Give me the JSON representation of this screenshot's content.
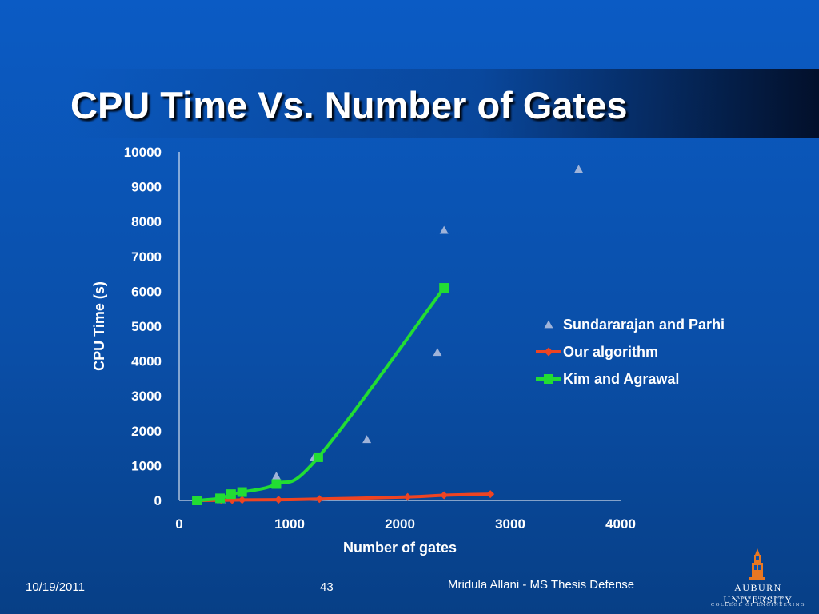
{
  "slide": {
    "title": "CPU Time Vs. Number of Gates",
    "footer_date": "10/19/2011",
    "footer_page": "43",
    "footer_author": "Mridula Allani - MS Thesis Defense"
  },
  "logo": {
    "name": "AUBURN UNIVERSITY",
    "sub1": "SAMUEL GINN",
    "sub2": "COLLEGE OF ENGINEERING"
  },
  "colors": {
    "background": "#0a4fa9",
    "sundararajan": "#9fb3d9",
    "ours": "#ee4422",
    "kim": "#22dd33"
  },
  "chart_data": {
    "type": "scatter",
    "xlabel": "Number of gates",
    "ylabel": "CPU Time (s)",
    "xlim": [
      0,
      4000
    ],
    "ylim": [
      0,
      10000
    ],
    "xticks": [
      0,
      1000,
      2000,
      3000,
      4000
    ],
    "yticks": [
      0,
      1000,
      2000,
      3000,
      4000,
      5000,
      6000,
      7000,
      8000,
      9000,
      10000
    ],
    "grid": false,
    "legend_position": "right",
    "series": [
      {
        "name": "Sundararajan and Parhi",
        "style": "markers",
        "marker": "triangle",
        "color": "#9fb3d9",
        "points": [
          [
            160,
            0
          ],
          [
            380,
            20
          ],
          [
            480,
            80
          ],
          [
            880,
            700
          ],
          [
            1220,
            1230
          ],
          [
            1700,
            1750
          ],
          [
            2340,
            4250
          ],
          [
            2400,
            7750
          ],
          [
            3620,
            9500
          ]
        ]
      },
      {
        "name": "Our algorithm",
        "style": "line+markers",
        "marker": "diamond",
        "color": "#ee4422",
        "points": [
          [
            160,
            0
          ],
          [
            380,
            5
          ],
          [
            480,
            10
          ],
          [
            570,
            15
          ],
          [
            900,
            20
          ],
          [
            1270,
            40
          ],
          [
            2070,
            100
          ],
          [
            2400,
            150
          ],
          [
            2820,
            180
          ]
        ]
      },
      {
        "name": "Kim and Agrawal",
        "style": "line+markers",
        "marker": "square",
        "color": "#22dd33",
        "points": [
          [
            160,
            0
          ],
          [
            370,
            60
          ],
          [
            470,
            180
          ],
          [
            570,
            240
          ],
          [
            880,
            470
          ],
          [
            1260,
            1240
          ],
          [
            2400,
            6100
          ]
        ]
      }
    ]
  }
}
